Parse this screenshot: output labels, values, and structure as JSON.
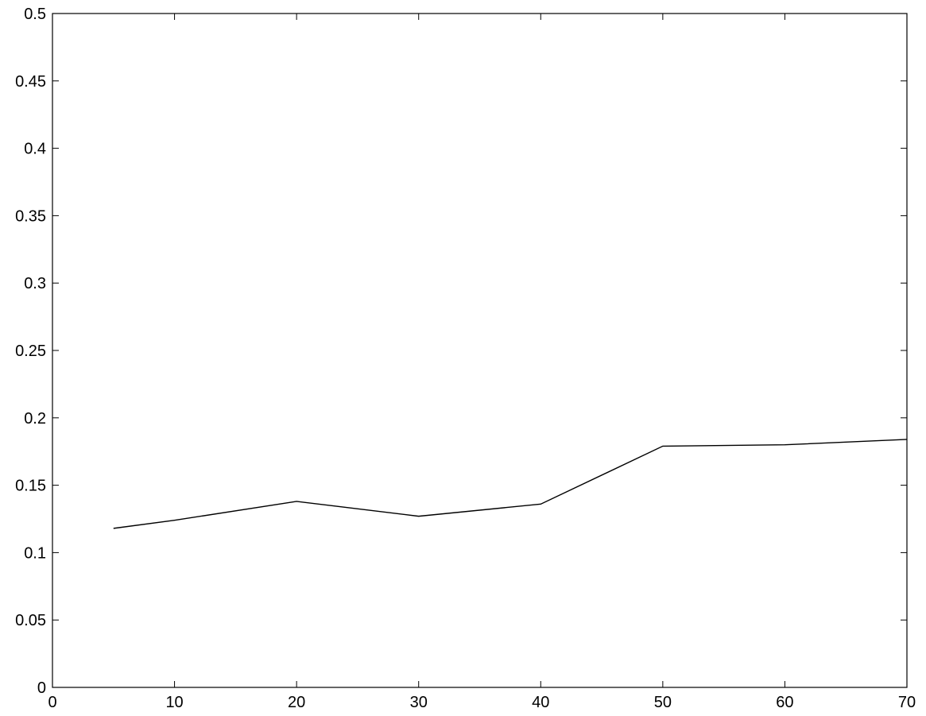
{
  "chart_data": {
    "type": "line",
    "title": "",
    "xlabel": "",
    "ylabel": "",
    "xlim": [
      0,
      70
    ],
    "ylim": [
      0,
      0.5
    ],
    "xticks": [
      0,
      10,
      20,
      30,
      40,
      50,
      60,
      70
    ],
    "xtick_labels": [
      "0",
      "10",
      "20",
      "30",
      "40",
      "50",
      "60",
      "70"
    ],
    "yticks": [
      0,
      0.05,
      0.1,
      0.15,
      0.2,
      0.25,
      0.3,
      0.35,
      0.4,
      0.45,
      0.5
    ],
    "ytick_labels": [
      "0",
      "0.05",
      "0.1",
      "0.15",
      "0.2",
      "0.25",
      "0.3",
      "0.35",
      "0.4",
      "0.45",
      "0.5"
    ],
    "grid": false,
    "legend": "none",
    "series": [
      {
        "color": "#000000",
        "x": [
          5,
          10,
          20,
          30,
          40,
          50,
          60,
          70
        ],
        "y": [
          0.118,
          0.124,
          0.138,
          0.127,
          0.136,
          0.179,
          0.18,
          0.184
        ]
      }
    ]
  }
}
